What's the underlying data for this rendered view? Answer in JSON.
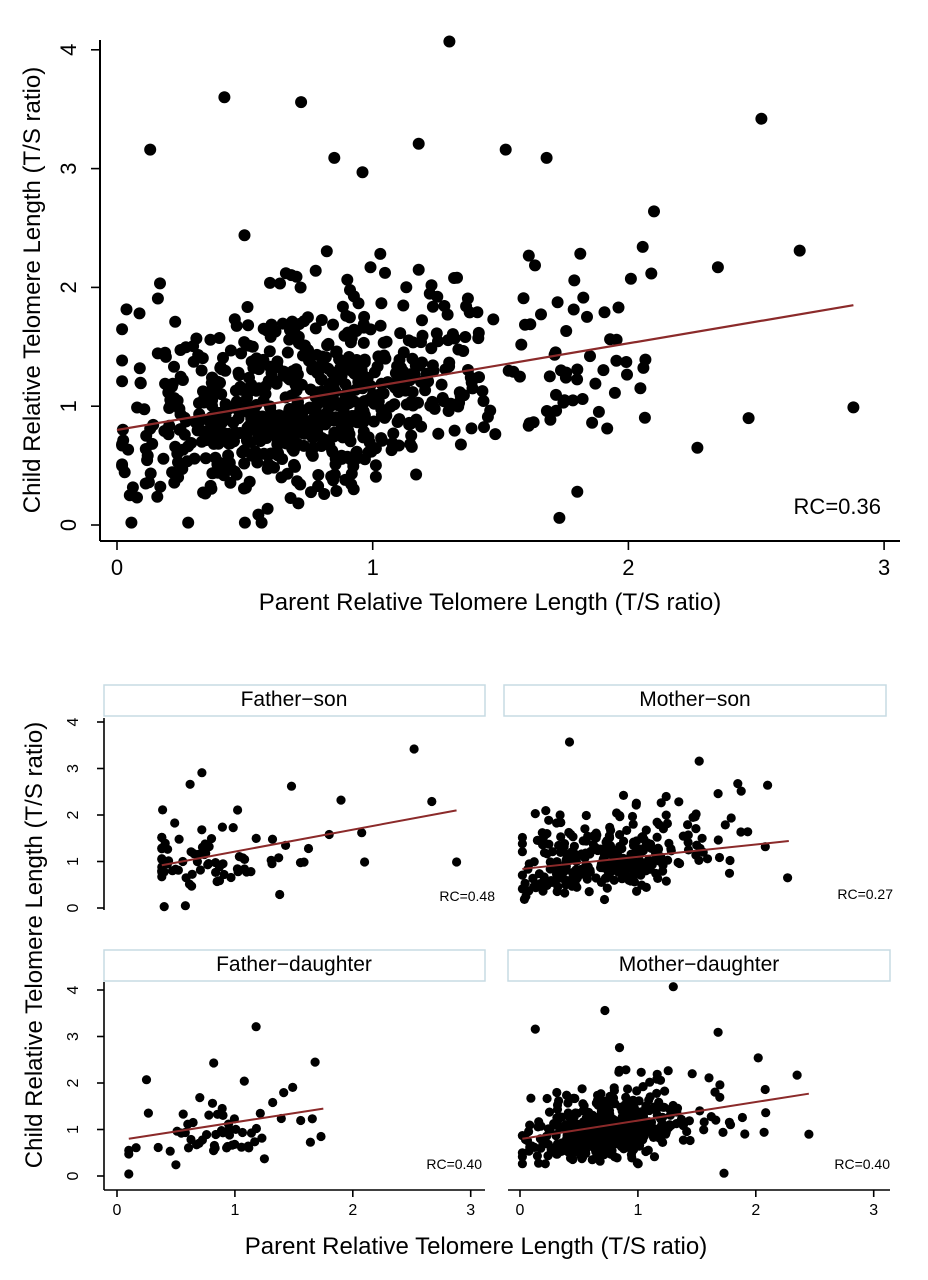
{
  "figure": {
    "x_title": "Parent Relative Telomere Length (T/S ratio)",
    "y_title": "Child Relative Telomere Length (T/S ratio)"
  },
  "chart_data": [
    {
      "type": "scatter",
      "panel": "combined",
      "title": "",
      "xlabel": "Parent Relative Telomere Length (T/S ratio)",
      "ylabel": "Child Relative Telomere Length (T/S ratio)",
      "xlim": [
        0,
        3
      ],
      "ylim": [
        0,
        4
      ],
      "xticks": [
        0,
        1,
        2,
        3
      ],
      "yticks": [
        0,
        1,
        2,
        3,
        4
      ],
      "annotation": "RC=0.36",
      "fit_line": {
        "x": [
          0.0,
          2.88
        ],
        "y": [
          0.8,
          1.85
        ],
        "color": "#8b2a2a"
      },
      "marker_color": "#000000",
      "notable_points": [
        {
          "x": 1.3,
          "y": 4.07
        },
        {
          "x": 0.42,
          "y": 3.6
        },
        {
          "x": 0.72,
          "y": 3.56
        },
        {
          "x": 2.52,
          "y": 3.42
        },
        {
          "x": 1.18,
          "y": 3.21
        },
        {
          "x": 0.13,
          "y": 3.16
        },
        {
          "x": 1.52,
          "y": 3.16
        },
        {
          "x": 1.68,
          "y": 3.09
        },
        {
          "x": 0.85,
          "y": 3.09
        },
        {
          "x": 0.96,
          "y": 2.97
        },
        {
          "x": 2.1,
          "y": 2.64
        },
        {
          "x": 2.67,
          "y": 2.31
        },
        {
          "x": 2.35,
          "y": 2.17
        },
        {
          "x": 2.88,
          "y": 0.99
        },
        {
          "x": 2.47,
          "y": 0.9
        },
        {
          "x": 2.27,
          "y": 0.65
        },
        {
          "x": 1.8,
          "y": 0.28
        },
        {
          "x": 1.73,
          "y": 0.06
        },
        {
          "x": 0.02,
          "y": 1.21
        },
        {
          "x": 0.05,
          "y": 0.25
        }
      ]
    },
    {
      "type": "scatter",
      "panel": "father-son",
      "title": "Father−son",
      "xlim": [
        0,
        3
      ],
      "ylim": [
        0,
        4
      ],
      "xticks": [
        0,
        1,
        2,
        3
      ],
      "yticks": [
        0,
        1,
        2,
        3,
        4
      ],
      "annotation": "RC=0.48",
      "fit_line": {
        "x": [
          0.38,
          2.88
        ],
        "y": [
          0.92,
          2.1
        ],
        "color": "#8b2a2a"
      },
      "marker_color": "#000000",
      "notable_points": [
        {
          "x": 2.52,
          "y": 3.42
        },
        {
          "x": 0.72,
          "y": 2.91
        },
        {
          "x": 0.62,
          "y": 2.66
        },
        {
          "x": 1.48,
          "y": 2.62
        },
        {
          "x": 2.67,
          "y": 2.29
        },
        {
          "x": 1.9,
          "y": 2.32
        },
        {
          "x": 1.8,
          "y": 1.58
        },
        {
          "x": 2.88,
          "y": 0.99
        },
        {
          "x": 2.1,
          "y": 0.99
        },
        {
          "x": 0.58,
          "y": 0.05
        },
        {
          "x": 0.4,
          "y": 0.03
        },
        {
          "x": 1.38,
          "y": 0.29
        }
      ]
    },
    {
      "type": "scatter",
      "panel": "mother-son",
      "title": "Mother−son",
      "xlim": [
        0,
        3
      ],
      "ylim": [
        0,
        4
      ],
      "xticks": [
        0,
        1,
        2,
        3
      ],
      "yticks": [
        0,
        1,
        2,
        3,
        4
      ],
      "annotation": "RC=0.27",
      "fit_line": {
        "x": [
          0.02,
          2.28
        ],
        "y": [
          0.84,
          1.44
        ],
        "color": "#8b2a2a"
      },
      "marker_color": "#000000",
      "notable_points": [
        {
          "x": 0.42,
          "y": 3.57
        },
        {
          "x": 1.52,
          "y": 3.16
        },
        {
          "x": 2.1,
          "y": 2.64
        },
        {
          "x": 1.68,
          "y": 2.46
        },
        {
          "x": 2.27,
          "y": 0.65
        },
        {
          "x": 0.13,
          "y": 2.03
        },
        {
          "x": 0.02,
          "y": 1.21
        },
        {
          "x": 0.05,
          "y": 0.25
        }
      ]
    },
    {
      "type": "scatter",
      "panel": "father-daughter",
      "title": "Father−daughter",
      "xlim": [
        0,
        3
      ],
      "ylim": [
        0,
        4
      ],
      "xticks": [
        0,
        1,
        2,
        3
      ],
      "yticks": [
        0,
        1,
        2,
        3,
        4
      ],
      "annotation": "RC=0.40",
      "fit_line": {
        "x": [
          0.1,
          1.75
        ],
        "y": [
          0.8,
          1.45
        ],
        "color": "#8b2a2a"
      },
      "marker_color": "#000000",
      "notable_points": [
        {
          "x": 1.18,
          "y": 3.21
        },
        {
          "x": 1.68,
          "y": 2.45
        },
        {
          "x": 0.25,
          "y": 2.07
        },
        {
          "x": 0.82,
          "y": 2.43
        },
        {
          "x": 1.08,
          "y": 2.04
        },
        {
          "x": 1.25,
          "y": 0.37
        },
        {
          "x": 0.5,
          "y": 0.24
        },
        {
          "x": 0.1,
          "y": 0.55
        },
        {
          "x": 1.73,
          "y": 0.85
        }
      ]
    },
    {
      "type": "scatter",
      "panel": "mother-daughter",
      "title": "Mother−daughter",
      "xlim": [
        0,
        3
      ],
      "ylim": [
        0,
        4
      ],
      "xticks": [
        0,
        1,
        2,
        3
      ],
      "yticks": [
        0,
        1,
        2,
        3,
        4
      ],
      "annotation": "RC=0.40",
      "fit_line": {
        "x": [
          0.02,
          2.45
        ],
        "y": [
          0.8,
          1.77
        ],
        "color": "#8b2a2a"
      },
      "marker_color": "#000000",
      "notable_points": [
        {
          "x": 1.3,
          "y": 4.07
        },
        {
          "x": 0.72,
          "y": 3.56
        },
        {
          "x": 0.13,
          "y": 3.16
        },
        {
          "x": 1.68,
          "y": 3.09
        },
        {
          "x": 2.35,
          "y": 2.17
        },
        {
          "x": 2.02,
          "y": 2.54
        },
        {
          "x": 2.45,
          "y": 0.9
        },
        {
          "x": 1.73,
          "y": 0.06
        }
      ]
    }
  ]
}
